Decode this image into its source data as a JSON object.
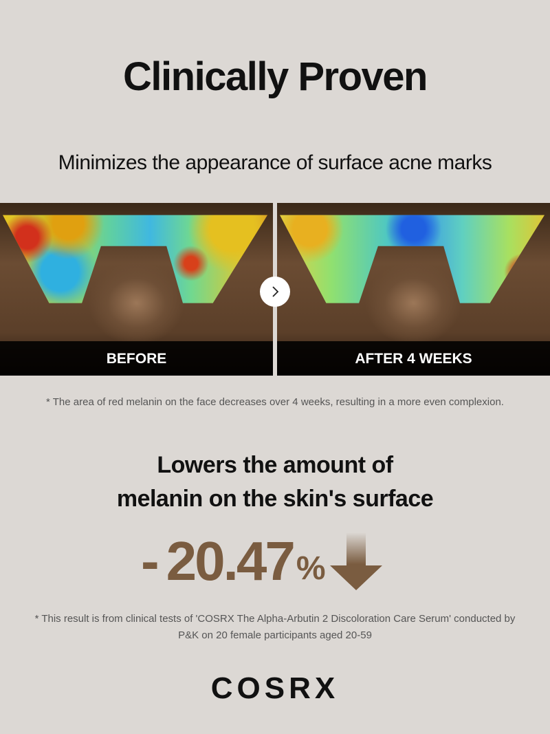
{
  "title": "Clinically Proven",
  "subtitle": "Minimizes the appearance of surface acne marks",
  "comparison": {
    "before_label": "BEFORE",
    "after_label": "AFTER 4 WEEKS",
    "arrow_icon": "chevron-right-icon"
  },
  "note1": "* The area of red melanin on the face decreases over 4 weeks, resulting in a more even complexion.",
  "headline": {
    "line1": "Lowers the amount of",
    "line2": "melanin on the skin's surface"
  },
  "stat": {
    "sign": "-",
    "value": "20.47",
    "unit": "%",
    "icon": "arrow-down-icon",
    "color": "#7a5c40"
  },
  "note2": {
    "line1": "* This result is from clinical tests of 'COSRX The Alpha-Arbutin 2 Discoloration Care Serum' conducted by",
    "line2": "P&K on 20 female participants aged 20-59"
  },
  "brand": "COSRX",
  "colors": {
    "background": "#dcd8d4",
    "accent": "#7a5c40"
  }
}
